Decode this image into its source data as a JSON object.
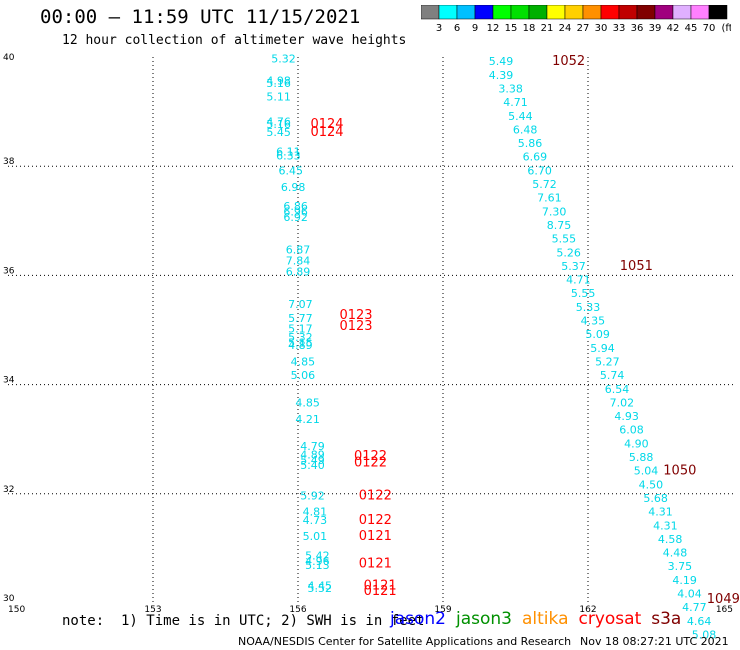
{
  "header": {
    "title": "00:00 – 11:59 UTC 11/15/2021",
    "subtitle": "12 hour collection of altimeter wave heights"
  },
  "colorbar": {
    "unit": "(ft)",
    "labels": [
      "3",
      "6",
      "9",
      "12",
      "15",
      "18",
      "21",
      "24",
      "27",
      "30",
      "33",
      "36",
      "39",
      "42",
      "45",
      "70"
    ],
    "colors": [
      "#808080",
      "#00ffff",
      "#00c0ff",
      "#0000ff",
      "#00ff00",
      "#00e000",
      "#00b000",
      "#ffff00",
      "#ffd000",
      "#ff9000",
      "#ff0000",
      "#c00000",
      "#800000",
      "#a0007e",
      "#e0b0ff",
      "#ff80ff",
      "#000000"
    ]
  },
  "footer": {
    "note": "note:  1) Time is in UTC; 2) SWH is in feet",
    "legend": [
      {
        "name": "jason2",
        "color": "#0000ff"
      },
      {
        "name": "jason3",
        "color": "#009000"
      },
      {
        "name": "altika",
        "color": "#ff9000"
      },
      {
        "name": "cryosat",
        "color": "#ff0000"
      },
      {
        "name": "s3a",
        "color": "#800000"
      }
    ],
    "credit": "NOAA/NESDIS Center for Satellite Applications and Research",
    "timestamp": "Nov 18 08:27:21 UTC 2021"
  },
  "chart_data": {
    "type": "scatter",
    "xlim": [
      150,
      165
    ],
    "ylim": [
      30,
      40
    ],
    "xticks": [
      "150",
      "153",
      "156",
      "159",
      "162",
      "165"
    ],
    "yticks": [
      "30",
      "32",
      "34",
      "36",
      "38",
      "40"
    ],
    "grid": true,
    "points": [
      {
        "x": 155.7,
        "y": 39.9,
        "v": "5.32"
      },
      {
        "x": 155.6,
        "y": 39.5,
        "v": "4.98"
      },
      {
        "x": 155.6,
        "y": 39.45,
        "v": "5.16"
      },
      {
        "x": 155.6,
        "y": 39.2,
        "v": "5.11"
      },
      {
        "x": 155.6,
        "y": 38.75,
        "v": "4.76"
      },
      {
        "x": 155.6,
        "y": 38.7,
        "v": "5.16"
      },
      {
        "x": 155.6,
        "y": 38.55,
        "v": "5.45"
      },
      {
        "x": 155.8,
        "y": 38.2,
        "v": "6.11"
      },
      {
        "x": 155.8,
        "y": 38.12,
        "v": "6.33"
      },
      {
        "x": 155.85,
        "y": 37.85,
        "v": "6.45"
      },
      {
        "x": 155.9,
        "y": 37.55,
        "v": "6.98"
      },
      {
        "x": 155.95,
        "y": 37.2,
        "v": "6.86"
      },
      {
        "x": 155.95,
        "y": 37.1,
        "v": "6.96"
      },
      {
        "x": 155.95,
        "y": 37.0,
        "v": "6.92"
      },
      {
        "x": 156.0,
        "y": 36.4,
        "v": "6.87"
      },
      {
        "x": 156.0,
        "y": 36.2,
        "v": "7.84"
      },
      {
        "x": 156.0,
        "y": 36.0,
        "v": "6.89"
      },
      {
        "x": 156.05,
        "y": 35.4,
        "v": "7.07"
      },
      {
        "x": 156.05,
        "y": 35.15,
        "v": "5.77"
      },
      {
        "x": 156.05,
        "y": 34.95,
        "v": "5.17"
      },
      {
        "x": 156.05,
        "y": 34.8,
        "v": "5.32"
      },
      {
        "x": 156.05,
        "y": 34.7,
        "v": "5.15"
      },
      {
        "x": 156.05,
        "y": 34.65,
        "v": "4.89"
      },
      {
        "x": 156.1,
        "y": 34.35,
        "v": "4.85"
      },
      {
        "x": 156.1,
        "y": 34.1,
        "v": "5.06"
      },
      {
        "x": 156.2,
        "y": 33.6,
        "v": "4.85"
      },
      {
        "x": 156.2,
        "y": 33.3,
        "v": "4.21"
      },
      {
        "x": 156.3,
        "y": 32.8,
        "v": "4.79"
      },
      {
        "x": 156.3,
        "y": 32.65,
        "v": "4.89"
      },
      {
        "x": 156.3,
        "y": 32.55,
        "v": "5.49"
      },
      {
        "x": 156.3,
        "y": 32.45,
        "v": "5.40"
      },
      {
        "x": 156.3,
        "y": 31.9,
        "v": "5.92"
      },
      {
        "x": 156.35,
        "y": 31.6,
        "v": "4.81"
      },
      {
        "x": 156.35,
        "y": 31.45,
        "v": "4.73"
      },
      {
        "x": 156.35,
        "y": 31.15,
        "v": "5.01"
      },
      {
        "x": 156.4,
        "y": 30.8,
        "v": "5.42"
      },
      {
        "x": 156.4,
        "y": 30.7,
        "v": "4.96"
      },
      {
        "x": 156.4,
        "y": 30.62,
        "v": "5.13"
      },
      {
        "x": 156.45,
        "y": 30.25,
        "v": "4.45"
      },
      {
        "x": 156.45,
        "y": 30.2,
        "v": "5.52"
      },
      {
        "x": 160.2,
        "y": 39.85,
        "v": "5.49"
      },
      {
        "x": 160.2,
        "y": 39.6,
        "v": "4.39"
      },
      {
        "x": 160.4,
        "y": 39.35,
        "v": "3.38"
      },
      {
        "x": 160.5,
        "y": 39.1,
        "v": "4.71"
      },
      {
        "x": 160.6,
        "y": 38.85,
        "v": "5.44"
      },
      {
        "x": 160.7,
        "y": 38.6,
        "v": "6.48"
      },
      {
        "x": 160.8,
        "y": 38.35,
        "v": "5.86"
      },
      {
        "x": 160.9,
        "y": 38.1,
        "v": "6.69"
      },
      {
        "x": 161.0,
        "y": 37.85,
        "v": "6.70"
      },
      {
        "x": 161.1,
        "y": 37.6,
        "v": "5.72"
      },
      {
        "x": 161.2,
        "y": 37.35,
        "v": "7.61"
      },
      {
        "x": 161.3,
        "y": 37.1,
        "v": "7.30"
      },
      {
        "x": 161.4,
        "y": 36.85,
        "v": "8.75"
      },
      {
        "x": 161.5,
        "y": 36.6,
        "v": "5.55"
      },
      {
        "x": 161.6,
        "y": 36.35,
        "v": "5.26"
      },
      {
        "x": 161.7,
        "y": 36.1,
        "v": "5.37"
      },
      {
        "x": 161.8,
        "y": 35.85,
        "v": "4.71"
      },
      {
        "x": 161.9,
        "y": 35.6,
        "v": "5.55"
      },
      {
        "x": 162.0,
        "y": 35.35,
        "v": "5.33"
      },
      {
        "x": 162.1,
        "y": 35.1,
        "v": "4.35"
      },
      {
        "x": 162.2,
        "y": 34.85,
        "v": "5.09"
      },
      {
        "x": 162.3,
        "y": 34.6,
        "v": "5.94"
      },
      {
        "x": 162.4,
        "y": 34.35,
        "v": "5.27"
      },
      {
        "x": 162.5,
        "y": 34.1,
        "v": "5.74"
      },
      {
        "x": 162.6,
        "y": 33.85,
        "v": "6.54"
      },
      {
        "x": 162.7,
        "y": 33.6,
        "v": "7.02"
      },
      {
        "x": 162.8,
        "y": 33.35,
        "v": "4.93"
      },
      {
        "x": 162.9,
        "y": 33.1,
        "v": "6.08"
      },
      {
        "x": 163.0,
        "y": 32.85,
        "v": "4.90"
      },
      {
        "x": 163.1,
        "y": 32.6,
        "v": "5.88"
      },
      {
        "x": 163.2,
        "y": 32.35,
        "v": "5.04"
      },
      {
        "x": 163.3,
        "y": 32.1,
        "v": "4.50"
      },
      {
        "x": 163.4,
        "y": 31.85,
        "v": "5.68"
      },
      {
        "x": 163.5,
        "y": 31.6,
        "v": "4.31"
      },
      {
        "x": 163.6,
        "y": 31.35,
        "v": "4.31"
      },
      {
        "x": 163.7,
        "y": 31.1,
        "v": "4.58"
      },
      {
        "x": 163.8,
        "y": 30.85,
        "v": "4.48"
      },
      {
        "x": 163.9,
        "y": 30.6,
        "v": "3.75"
      },
      {
        "x": 164.0,
        "y": 30.35,
        "v": "4.19"
      },
      {
        "x": 164.1,
        "y": 30.1,
        "v": "4.04"
      },
      {
        "x": 164.2,
        "y": 29.85,
        "v": "4.77"
      },
      {
        "x": 164.3,
        "y": 29.6,
        "v": "4.64"
      },
      {
        "x": 164.4,
        "y": 29.35,
        "v": "5.08"
      }
    ],
    "times": [
      {
        "x": 161.6,
        "y": 39.85,
        "t": "1052",
        "sat": "s3a"
      },
      {
        "x": 156.6,
        "y": 38.7,
        "t": "0124",
        "sat": "cryosat"
      },
      {
        "x": 156.6,
        "y": 38.55,
        "t": "0124",
        "sat": "cryosat"
      },
      {
        "x": 163.0,
        "y": 36.1,
        "t": "1051",
        "sat": "s3a"
      },
      {
        "x": 157.2,
        "y": 35.2,
        "t": "0123",
        "sat": "cryosat"
      },
      {
        "x": 157.2,
        "y": 35.0,
        "t": "0123",
        "sat": "cryosat"
      },
      {
        "x": 163.9,
        "y": 32.35,
        "t": "1050",
        "sat": "s3a"
      },
      {
        "x": 157.5,
        "y": 32.62,
        "t": "0122",
        "sat": "cryosat"
      },
      {
        "x": 157.5,
        "y": 32.5,
        "t": "0122",
        "sat": "cryosat"
      },
      {
        "x": 157.6,
        "y": 31.9,
        "t": "0122",
        "sat": "cryosat"
      },
      {
        "x": 157.6,
        "y": 31.45,
        "t": "0122",
        "sat": "cryosat"
      },
      {
        "x": 157.6,
        "y": 31.15,
        "t": "0121",
        "sat": "cryosat"
      },
      {
        "x": 157.6,
        "y": 30.65,
        "t": "0121",
        "sat": "cryosat"
      },
      {
        "x": 157.7,
        "y": 30.25,
        "t": "0121",
        "sat": "cryosat"
      },
      {
        "x": 157.7,
        "y": 30.15,
        "t": "0121",
        "sat": "cryosat"
      },
      {
        "x": 164.8,
        "y": 30.0,
        "t": "1049",
        "sat": "s3a"
      }
    ]
  }
}
